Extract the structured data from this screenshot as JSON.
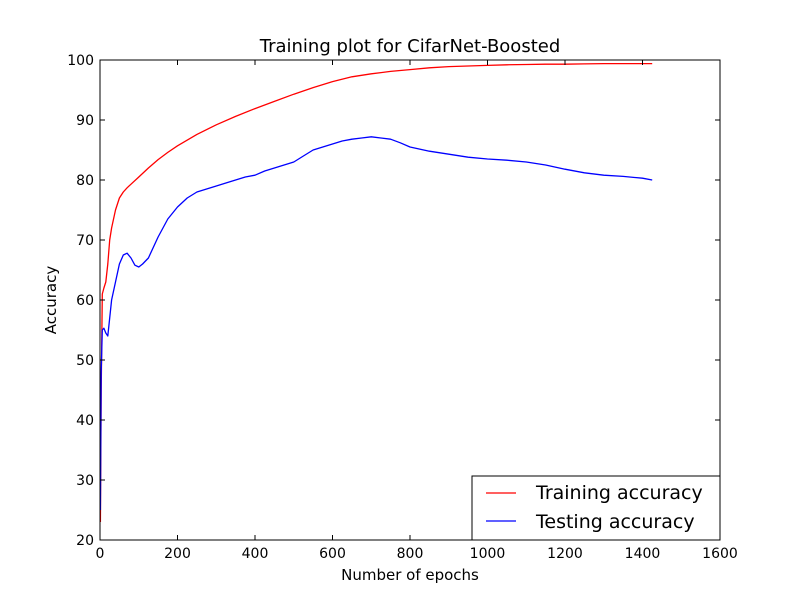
{
  "chart_data": {
    "type": "line",
    "title": "Training plot for CifarNet-Boosted",
    "xlabel": "Number of epochs",
    "ylabel": "Accuracy",
    "xlim": [
      0,
      1600
    ],
    "ylim": [
      20,
      100
    ],
    "xticks": [
      0,
      200,
      400,
      600,
      800,
      1000,
      1200,
      1400,
      1600
    ],
    "yticks": [
      20,
      30,
      40,
      50,
      60,
      70,
      80,
      90,
      100
    ],
    "grid": false,
    "legend": "bottom-right",
    "series": [
      {
        "name": "Training accuracy",
        "color": "#ff0000",
        "x": [
          1,
          3,
          6,
          10,
          15,
          20,
          25,
          30,
          40,
          50,
          60,
          70,
          80,
          100,
          125,
          150,
          175,
          200,
          250,
          300,
          350,
          400,
          450,
          500,
          550,
          600,
          650,
          700,
          750,
          800,
          850,
          900,
          950,
          1000,
          1050,
          1100,
          1150,
          1200,
          1250,
          1300,
          1350,
          1400,
          1425
        ],
        "y": [
          23,
          45,
          61,
          62,
          63,
          66,
          70,
          72,
          75,
          77,
          78,
          78.7,
          79.3,
          80.5,
          82,
          83.4,
          84.6,
          85.7,
          87.6,
          89.2,
          90.6,
          91.9,
          93.1,
          94.3,
          95.4,
          96.4,
          97.2,
          97.7,
          98.1,
          98.4,
          98.7,
          98.9,
          99.0,
          99.1,
          99.2,
          99.25,
          99.3,
          99.3,
          99.35,
          99.4,
          99.4,
          99.4,
          99.4
        ]
      },
      {
        "name": "Testing accuracy",
        "color": "#0000ff",
        "x": [
          1,
          3,
          6,
          10,
          15,
          20,
          25,
          30,
          40,
          50,
          60,
          70,
          80,
          90,
          100,
          110,
          125,
          150,
          175,
          200,
          225,
          250,
          275,
          300,
          325,
          350,
          375,
          400,
          425,
          450,
          475,
          500,
          525,
          550,
          575,
          600,
          625,
          650,
          675,
          700,
          725,
          750,
          775,
          800,
          850,
          900,
          950,
          1000,
          1050,
          1100,
          1150,
          1200,
          1250,
          1300,
          1350,
          1400,
          1425
        ],
        "y": [
          25,
          48,
          55,
          55.3,
          54.5,
          54,
          57,
          60,
          63,
          66,
          67.5,
          67.8,
          67,
          65.8,
          65.5,
          66,
          67,
          70.5,
          73.5,
          75.5,
          77,
          78,
          78.5,
          79,
          79.5,
          80,
          80.5,
          80.8,
          81.5,
          82,
          82.5,
          83,
          84,
          85,
          85.5,
          86,
          86.5,
          86.8,
          87,
          87.2,
          87,
          86.8,
          86.2,
          85.5,
          84.8,
          84.3,
          83.8,
          83.5,
          83.3,
          83,
          82.5,
          81.8,
          81.2,
          80.8,
          80.6,
          80.3,
          80
        ]
      }
    ]
  }
}
